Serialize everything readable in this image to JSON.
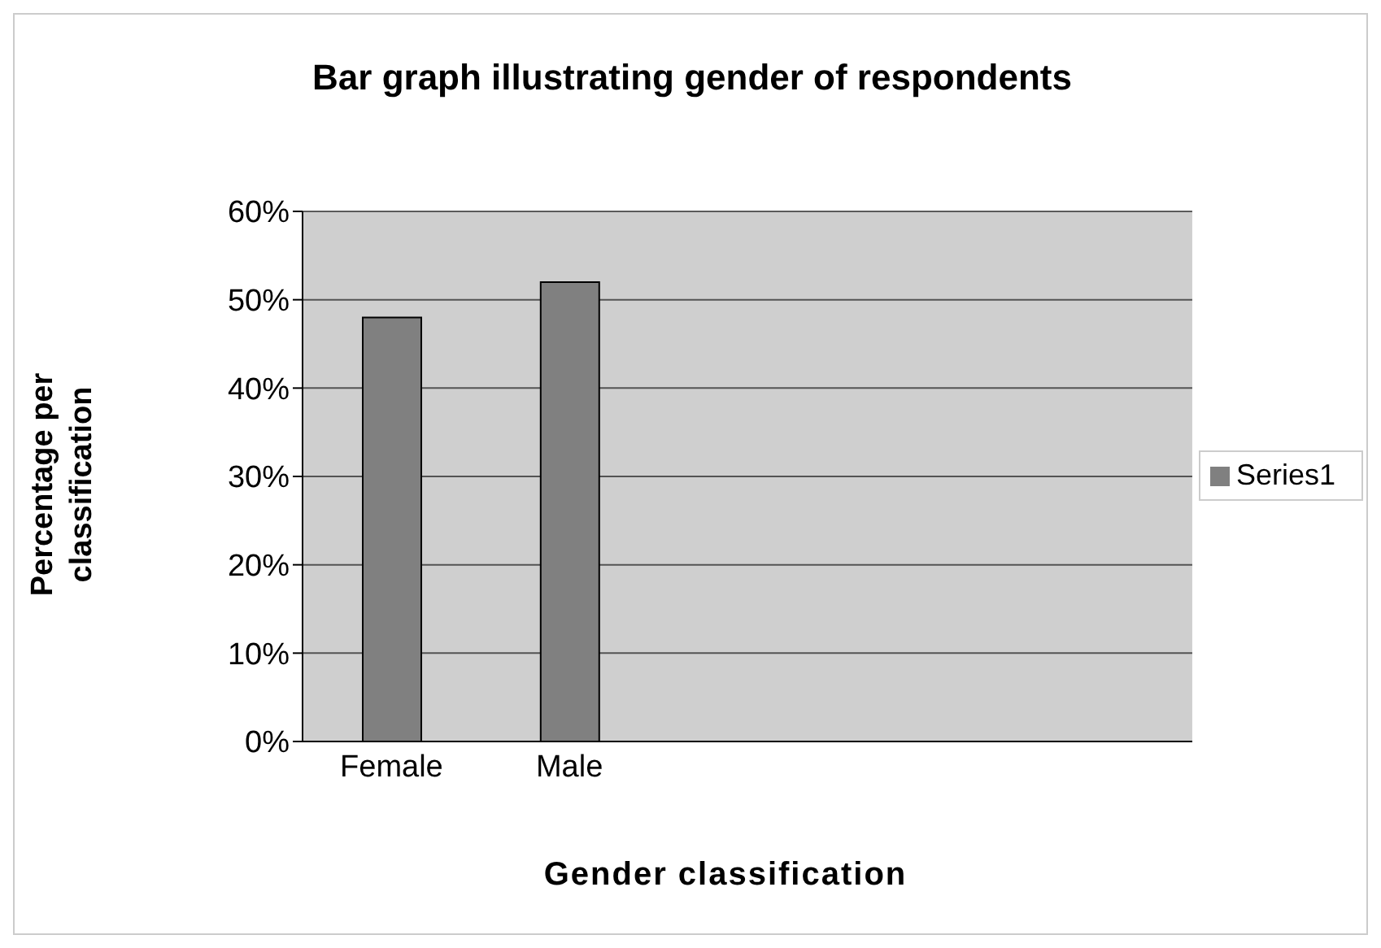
{
  "chart_data": {
    "type": "bar",
    "title": "Bar graph illustrating gender of respondents",
    "xlabel": "Gender classification",
    "ylabel": "Percentage per classification",
    "categories": [
      "Female",
      "Male",
      null,
      null,
      null
    ],
    "series": [
      {
        "name": "Series1",
        "color": "#808080",
        "values": [
          48,
          52,
          null,
          null,
          null
        ]
      }
    ],
    "ylim": [
      0,
      60
    ],
    "yticks": [
      {
        "value": 0,
        "label": "0%"
      },
      {
        "value": 10,
        "label": "10%"
      },
      {
        "value": 20,
        "label": "20%"
      },
      {
        "value": 30,
        "label": "30%"
      },
      {
        "value": 40,
        "label": "40%"
      },
      {
        "value": 50,
        "label": "50%"
      },
      {
        "value": 60,
        "label": "60%"
      }
    ],
    "grid": "y",
    "legend": "right"
  }
}
